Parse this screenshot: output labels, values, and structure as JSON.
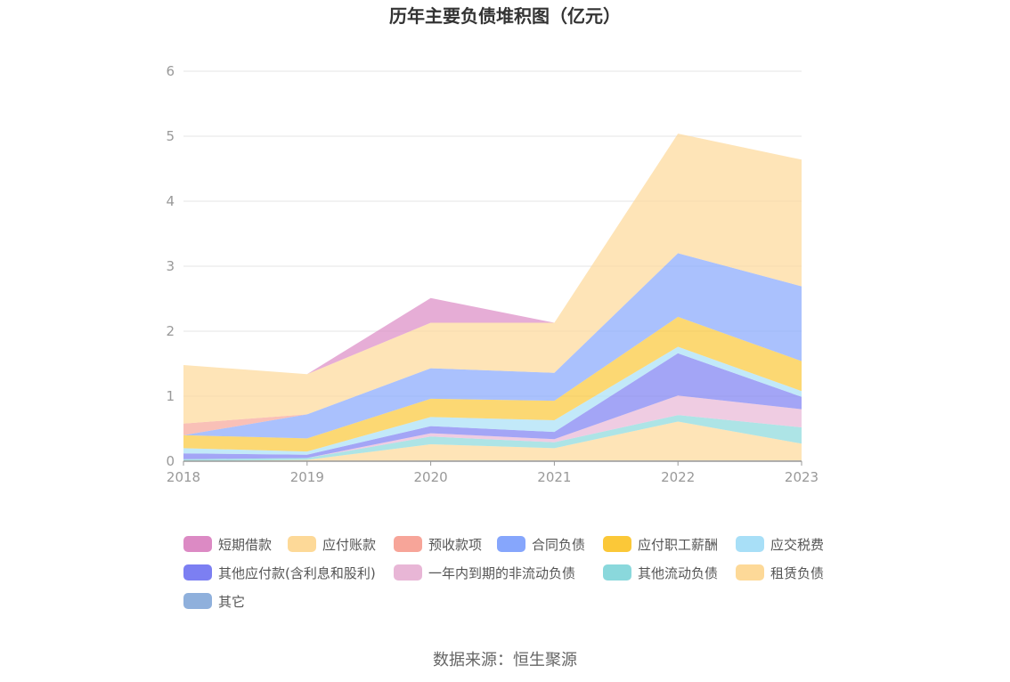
{
  "chart_data": {
    "type": "area",
    "stacked": true,
    "title": "历年主要负债堆积图（亿元）",
    "x": [
      "2018",
      "2019",
      "2020",
      "2021",
      "2022",
      "2023"
    ],
    "ylim": [
      0,
      6
    ],
    "yticks": [
      "0",
      "1",
      "2",
      "3",
      "4",
      "5",
      "6"
    ],
    "grid": true,
    "legend_position": "bottom",
    "series": [
      {
        "name": "其它",
        "color": "#8fb0dc",
        "values": [
          0.0,
          0.0,
          0.01,
          0.01,
          0.01,
          0.01
        ]
      },
      {
        "name": "租赁负债",
        "color": "#fdd998",
        "values": [
          0.0,
          0.02,
          0.25,
          0.19,
          0.6,
          0.26
        ]
      },
      {
        "name": "其他流动负债",
        "color": "#8ad8dc",
        "values": [
          0.03,
          0.03,
          0.12,
          0.09,
          0.1,
          0.25
        ]
      },
      {
        "name": "一年内到期的非流动负债",
        "color": "#e8b6d6",
        "values": [
          0.0,
          0.0,
          0.05,
          0.05,
          0.3,
          0.28
        ]
      },
      {
        "name": "其他应付款(含利息和股利)",
        "color": "#7c7ff2",
        "values": [
          0.09,
          0.05,
          0.11,
          0.11,
          0.65,
          0.19
        ]
      },
      {
        "name": "应交税费",
        "color": "#a8dff7",
        "values": [
          0.08,
          0.05,
          0.14,
          0.18,
          0.1,
          0.09
        ]
      },
      {
        "name": "应付职工薪酬",
        "color": "#fbc838",
        "values": [
          0.2,
          0.2,
          0.28,
          0.3,
          0.46,
          0.46
        ]
      },
      {
        "name": "合同负债",
        "color": "#86a6fc",
        "values": [
          0.0,
          0.37,
          0.47,
          0.43,
          0.98,
          1.15
        ]
      },
      {
        "name": "预收款项",
        "color": "#f7a599",
        "values": [
          0.18,
          0.0,
          0.0,
          0.0,
          0.0,
          0.0
        ]
      },
      {
        "name": "应付账款",
        "color": "#fdd998",
        "values": [
          0.9,
          0.62,
          0.7,
          0.77,
          1.84,
          1.95
        ]
      },
      {
        "name": "短期借款",
        "color": "#dc8ac4",
        "values": [
          0.0,
          0.0,
          0.38,
          0.0,
          0.0,
          0.0
        ]
      }
    ],
    "legend": [
      "短期借款",
      "应付账款",
      "预收款项",
      "合同负债",
      "应付职工薪酬",
      "应交税费",
      "其他应付款(含利息和股利)",
      "一年内到期的非流动负债",
      "其他流动负债",
      "租赁负债",
      "其它"
    ]
  },
  "source": "数据来源：恒生聚源"
}
